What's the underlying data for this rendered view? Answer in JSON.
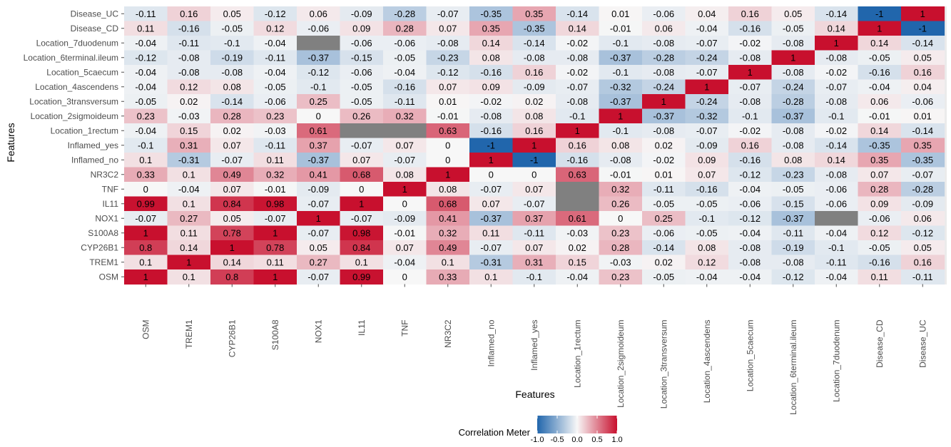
{
  "chart_data": {
    "type": "heatmap",
    "xlabel": "Features",
    "ylabel": "Features",
    "x": [
      "OSM",
      "TREM1",
      "CYP26B1",
      "S100A8",
      "NOX1",
      "IL11",
      "TNF",
      "NR3C2",
      "Inflamed_no",
      "Inflamed_yes",
      "Location_1rectum",
      "Location_2sigmoideum",
      "Location_3transversum",
      "Location_4ascendens",
      "Location_5caecum",
      "Location_6terminal.ileum",
      "Location_7duodenum",
      "Disease_CD",
      "Disease_UC"
    ],
    "y": [
      "Disease_UC",
      "Disease_CD",
      "Location_7duodenum",
      "Location_6terminal.ileum",
      "Location_5caecum",
      "Location_4ascendens",
      "Location_3transversum",
      "Location_2sigmoideum",
      "Location_1rectum",
      "Inflamed_yes",
      "Inflamed_no",
      "NR3C2",
      "TNF",
      "IL11",
      "NOX1",
      "S100A8",
      "CYP26B1",
      "TREM1",
      "OSM"
    ],
    "values": [
      [
        -0.11,
        0.16,
        0.05,
        -0.12,
        0.06,
        -0.09,
        -0.28,
        -0.07,
        -0.35,
        0.35,
        -0.14,
        0.01,
        -0.06,
        0.04,
        0.16,
        0.05,
        -0.14,
        -1,
        1
      ],
      [
        0.11,
        -0.16,
        -0.05,
        0.12,
        -0.06,
        0.09,
        0.28,
        0.07,
        0.35,
        -0.35,
        0.14,
        -0.01,
        0.06,
        -0.04,
        -0.16,
        -0.05,
        0.14,
        1,
        -1
      ],
      [
        -0.04,
        -0.11,
        -0.1,
        -0.04,
        null,
        -0.06,
        -0.06,
        -0.08,
        0.14,
        -0.14,
        -0.02,
        -0.1,
        -0.08,
        -0.07,
        -0.02,
        -0.08,
        1,
        0.14,
        -0.14
      ],
      [
        -0.12,
        -0.08,
        -0.19,
        -0.11,
        -0.37,
        -0.15,
        -0.05,
        -0.23,
        0.08,
        -0.08,
        -0.08,
        -0.37,
        -0.28,
        -0.24,
        -0.08,
        1,
        -0.08,
        -0.05,
        0.05
      ],
      [
        -0.04,
        -0.08,
        -0.08,
        -0.04,
        -0.12,
        -0.06,
        -0.04,
        -0.12,
        -0.16,
        0.16,
        -0.02,
        -0.1,
        -0.08,
        -0.07,
        1,
        -0.08,
        -0.02,
        -0.16,
        0.16
      ],
      [
        -0.04,
        0.12,
        0.08,
        -0.05,
        -0.1,
        -0.05,
        -0.16,
        0.07,
        0.09,
        -0.09,
        -0.07,
        -0.32,
        -0.24,
        1,
        -0.07,
        -0.24,
        -0.07,
        -0.04,
        0.04
      ],
      [
        -0.05,
        0.02,
        -0.14,
        -0.06,
        0.25,
        -0.05,
        -0.11,
        0.01,
        -0.02,
        0.02,
        -0.08,
        -0.37,
        1,
        -0.24,
        -0.08,
        -0.28,
        -0.08,
        0.06,
        -0.06
      ],
      [
        0.23,
        -0.03,
        0.28,
        0.23,
        0,
        0.26,
        0.32,
        -0.01,
        -0.08,
        0.08,
        -0.1,
        1,
        -0.37,
        -0.32,
        -0.1,
        -0.37,
        -0.1,
        -0.01,
        0.01
      ],
      [
        -0.04,
        0.15,
        0.02,
        -0.03,
        0.61,
        null,
        null,
        0.63,
        -0.16,
        0.16,
        1,
        -0.1,
        -0.08,
        -0.07,
        -0.02,
        -0.08,
        -0.02,
        0.14,
        -0.14
      ],
      [
        -0.1,
        0.31,
        0.07,
        -0.11,
        0.37,
        -0.07,
        0.07,
        0,
        -1,
        1,
        0.16,
        0.08,
        0.02,
        -0.09,
        0.16,
        -0.08,
        -0.14,
        -0.35,
        0.35
      ],
      [
        0.1,
        -0.31,
        -0.07,
        0.11,
        -0.37,
        0.07,
        -0.07,
        0,
        1,
        -1,
        -0.16,
        -0.08,
        -0.02,
        0.09,
        -0.16,
        0.08,
        0.14,
        0.35,
        -0.35
      ],
      [
        0.33,
        0.1,
        0.49,
        0.32,
        0.41,
        0.68,
        0.08,
        1,
        0,
        0,
        0.63,
        -0.01,
        0.01,
        0.07,
        -0.12,
        -0.23,
        -0.08,
        0.07,
        -0.07
      ],
      [
        0,
        -0.04,
        0.07,
        -0.01,
        -0.09,
        0,
        1,
        0.08,
        -0.07,
        0.07,
        null,
        0.32,
        -0.11,
        -0.16,
        -0.04,
        -0.05,
        -0.06,
        0.28,
        -0.28
      ],
      [
        0.99,
        0.1,
        0.84,
        0.98,
        -0.07,
        1,
        0,
        0.68,
        0.07,
        -0.07,
        null,
        0.26,
        -0.05,
        -0.05,
        -0.06,
        -0.15,
        -0.06,
        0.09,
        -0.09
      ],
      [
        -0.07,
        0.27,
        0.05,
        -0.07,
        1,
        -0.07,
        -0.09,
        0.41,
        -0.37,
        0.37,
        0.61,
        0,
        0.25,
        -0.1,
        -0.12,
        -0.37,
        null,
        -0.06,
        0.06
      ],
      [
        1,
        0.11,
        0.78,
        1,
        -0.07,
        0.98,
        -0.01,
        0.32,
        0.11,
        -0.11,
        -0.03,
        0.23,
        -0.06,
        -0.05,
        -0.04,
        -0.11,
        -0.04,
        0.12,
        -0.12
      ],
      [
        0.8,
        0.14,
        1,
        0.78,
        0.05,
        0.84,
        0.07,
        0.49,
        -0.07,
        0.07,
        0.02,
        0.28,
        -0.14,
        0.08,
        -0.08,
        -0.19,
        -0.1,
        -0.05,
        0.05
      ],
      [
        0.1,
        1,
        0.14,
        0.11,
        0.27,
        0.1,
        -0.04,
        0.1,
        -0.31,
        0.31,
        0.15,
        -0.03,
        0.02,
        0.12,
        -0.08,
        -0.08,
        -0.11,
        -0.16,
        0.16
      ],
      [
        1,
        0.1,
        0.8,
        1,
        -0.07,
        0.99,
        0,
        0.33,
        0.1,
        -0.1,
        -0.04,
        0.23,
        -0.05,
        -0.04,
        -0.04,
        -0.12,
        -0.04,
        0.11,
        -0.11
      ]
    ],
    "missing_color": "#808080",
    "colorscale": {
      "low": "#2166ac",
      "mid": "#f7f7f7",
      "high": "#c8102e",
      "range": [
        -1,
        1
      ]
    },
    "legend": {
      "title": "Correlation Meter",
      "ticks": [
        "-1.0",
        "-0.5",
        "0.0",
        "0.5",
        "1.0"
      ],
      "tick_values": [
        -1,
        -0.5,
        0,
        0.5,
        1
      ],
      "position": "bottom"
    },
    "panel_background": "#ebebeb"
  }
}
